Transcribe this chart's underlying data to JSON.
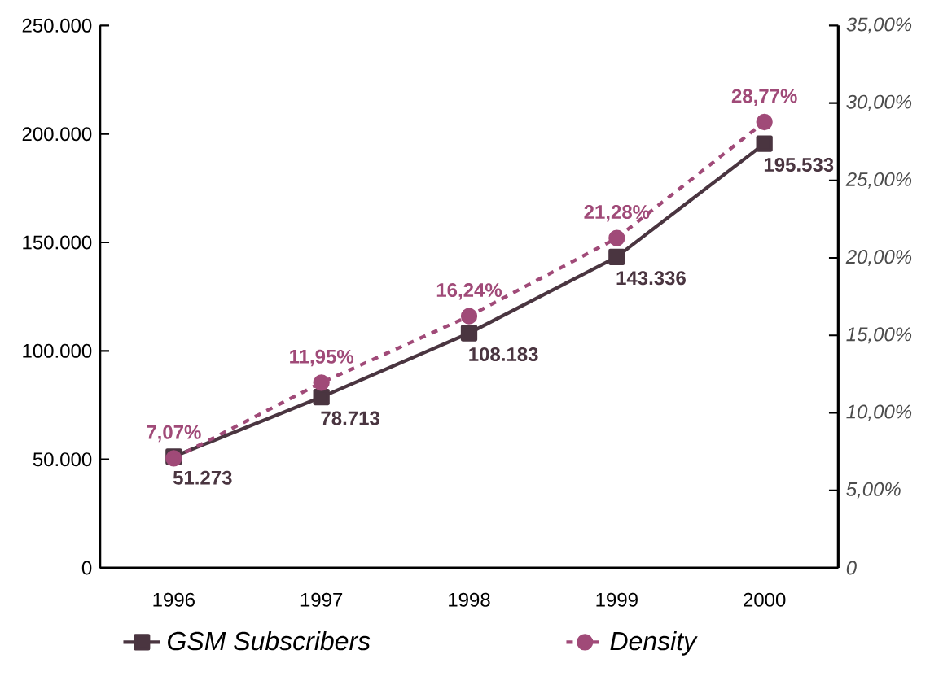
{
  "chart_data": {
    "type": "line",
    "categories": [
      "1996",
      "1997",
      "1998",
      "1999",
      "2000"
    ],
    "series": [
      {
        "name": "GSM Subscribers",
        "color": "#4a3540",
        "values": [
          51273,
          78713,
          108183,
          143336,
          195533
        ],
        "value_labels": [
          "51.273",
          "78.713",
          "108.183",
          "143.336",
          "195.533"
        ],
        "marker": "square",
        "line_style": "solid"
      },
      {
        "name": "Density",
        "color": "#a04a78",
        "axis": "y2",
        "values": [
          7.07,
          11.95,
          16.24,
          21.28,
          28.77
        ],
        "value_labels": [
          "7,07%",
          "11,95%",
          "16,24%",
          "21,28%",
          "28,77%"
        ],
        "marker": "circle",
        "line_style": "dashed"
      }
    ],
    "ylim": [
      0,
      250000
    ],
    "yticks": [
      0,
      {
        "value": 50000,
        "label": "50.000"
      },
      {
        "value": 100000,
        "label": "100.000"
      },
      {
        "value": 150000,
        "label": "150.000"
      },
      {
        "value": 200000,
        "label": "200.000"
      },
      {
        "value": 250000,
        "label": "250.000"
      }
    ],
    "y2lim": [
      0,
      35
    ],
    "y2ticks": [
      0,
      {
        "value": 5,
        "label": "5,00%"
      },
      {
        "value": 10,
        "label": "10,00%"
      },
      {
        "value": 15,
        "label": "15,00%"
      },
      {
        "value": 20,
        "label": "20,00%"
      },
      {
        "value": 25,
        "label": "25,00%"
      },
      {
        "value": 30,
        "label": "30,00%"
      },
      {
        "value": 35,
        "label": "35,00%"
      }
    ],
    "grid": false,
    "legend": "bottom"
  }
}
